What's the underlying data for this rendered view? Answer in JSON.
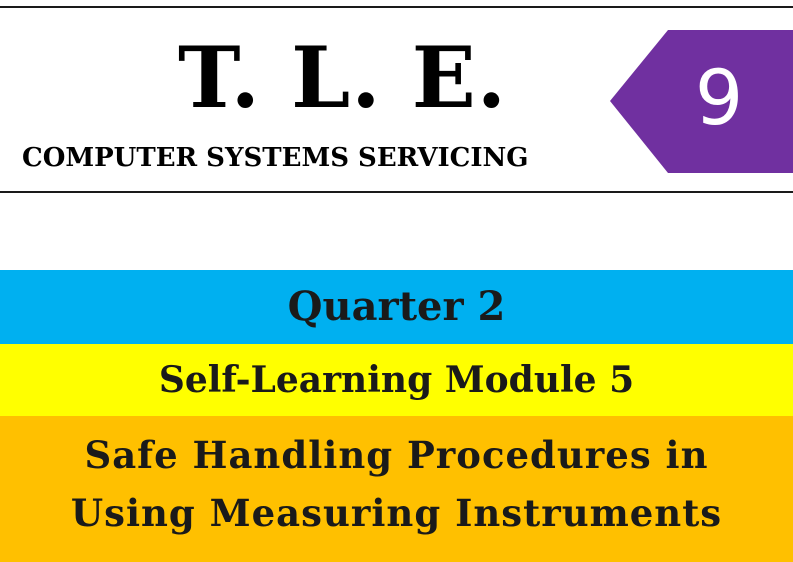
{
  "header": {
    "title": "T. L. E.",
    "subtitle": "COMPUTER SYSTEMS SERVICING",
    "grade": "9",
    "grade_badge_color": "#7030a0"
  },
  "bands": {
    "quarter": {
      "label": "Quarter 2",
      "color": "#00b0f0"
    },
    "module": {
      "label": "Self-Learning Module 5",
      "color": "#ffff00"
    },
    "topic": {
      "lines": [
        "Safe Handling Procedures  in",
        "Using Measuring Instruments"
      ],
      "color": "#ffc000"
    }
  }
}
